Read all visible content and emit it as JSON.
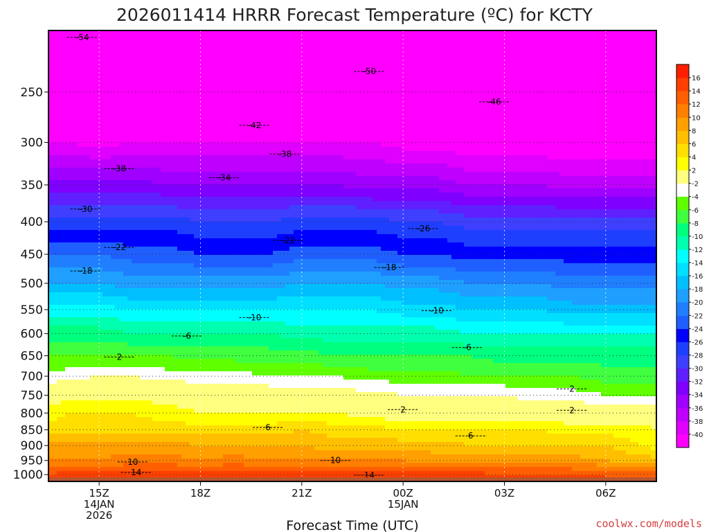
{
  "chart_data": {
    "type": "heatmap",
    "title": "2026011414 HRRR Forecast Temperature (ºC) for KCTY",
    "xlabel": "Forecast Time (UTC)",
    "ylabel": "",
    "credit": "coolwx.com/models",
    "x_range_hours": [
      -0.5,
      17.5
    ],
    "y_range_hpa": [
      1025,
      200
    ],
    "y_ticks": [
      {
        "p": 250,
        "label": "250"
      },
      {
        "p": 300,
        "label": "300"
      },
      {
        "p": 350,
        "label": "350"
      },
      {
        "p": 400,
        "label": "400"
      },
      {
        "p": 450,
        "label": "450"
      },
      {
        "p": 500,
        "label": "500"
      },
      {
        "p": 550,
        "label": "550"
      },
      {
        "p": 600,
        "label": "600"
      },
      {
        "p": 650,
        "label": "650"
      },
      {
        "p": 700,
        "label": "700"
      },
      {
        "p": 750,
        "label": "750"
      },
      {
        "p": 800,
        "label": "800"
      },
      {
        "p": 850,
        "label": "850"
      },
      {
        "p": 900,
        "label": "900"
      },
      {
        "p": 950,
        "label": "950"
      },
      {
        "p": 1000,
        "label": "1000"
      }
    ],
    "x_ticks": [
      {
        "h": 1,
        "lines": [
          "15Z",
          "14JAN",
          "2026"
        ]
      },
      {
        "h": 4,
        "lines": [
          "18Z"
        ]
      },
      {
        "h": 7,
        "lines": [
          "21Z"
        ]
      },
      {
        "h": 10,
        "lines": [
          "00Z",
          "15JAN"
        ]
      },
      {
        "h": 13,
        "lines": [
          "03Z"
        ]
      },
      {
        "h": 16,
        "lines": [
          "06Z"
        ]
      }
    ],
    "colorbar": {
      "levels": [
        -40,
        -38,
        -36,
        -34,
        -32,
        -30,
        -28,
        -26,
        -24,
        -22,
        -20,
        -18,
        -16,
        -14,
        -12,
        -10,
        -8,
        -6,
        -4,
        -2,
        2,
        4,
        6,
        8,
        10,
        12,
        14,
        16
      ],
      "labels": [
        "-40",
        "-38",
        "-36",
        "-34",
        "-32",
        "-30",
        "-28",
        "-26",
        "-24",
        "-22",
        "-20",
        "-18",
        "-16",
        "-14",
        "-12",
        "-10",
        "-8",
        "-6",
        "-4",
        "-2",
        "2",
        "4",
        "6",
        "8",
        "10",
        "12",
        "14",
        "16"
      ],
      "colors": [
        "#ff00ff",
        "#df00ff",
        "#bf00ff",
        "#9f00ff",
        "#7f00ff",
        "#5f1fff",
        "#3f3fff",
        "#1f3fff",
        "#0000ff",
        "#1f5fff",
        "#1f7fff",
        "#1f9fff",
        "#00bfff",
        "#00dfff",
        "#00ffff",
        "#00ffaf",
        "#00ff7f",
        "#3fff3f",
        "#5fff00",
        "#ffffff",
        "#ffff7f",
        "#ffff00",
        "#ffdf00",
        "#ffbf00",
        "#ff9f00",
        "#ff7f00",
        "#ff5f00",
        "#ff3f00",
        "#ff1f00"
      ]
    },
    "times_h": [
      -0.5,
      0,
      1,
      2,
      3,
      4,
      5,
      6,
      7,
      8,
      9,
      10,
      11,
      12,
      13,
      14,
      15,
      16,
      17,
      17.5
    ],
    "pressure_levels_hpa": [
      1000,
      950,
      900,
      850,
      800,
      750,
      700,
      650,
      600,
      550,
      500,
      450,
      400,
      350,
      300,
      250
    ],
    "temperature_c": [
      [
        14,
        15,
        15,
        15,
        15,
        15,
        15,
        15,
        15,
        15,
        15,
        15,
        15,
        15,
        14,
        14,
        14,
        14,
        13,
        13
      ],
      [
        10,
        10,
        10,
        11,
        11,
        10,
        11,
        10,
        10,
        10,
        10,
        10,
        9,
        9,
        9,
        9,
        9,
        8,
        7,
        7
      ],
      [
        9,
        9,
        9,
        9,
        9,
        8,
        8,
        8,
        8,
        7,
        7,
        7,
        7,
        6,
        6,
        6,
        6,
        6,
        4,
        3
      ],
      [
        5,
        5,
        5,
        5,
        5,
        5,
        5,
        5,
        6,
        5,
        5,
        4,
        4,
        4,
        4,
        4,
        3,
        3,
        3,
        2
      ],
      [
        3,
        4,
        4,
        4,
        3,
        2,
        2,
        2,
        2,
        2,
        1,
        0,
        0,
        0,
        0,
        0,
        0,
        0,
        0,
        0
      ],
      [
        0,
        1,
        1,
        1,
        1,
        0,
        0,
        0,
        -1,
        -1,
        -1,
        -2,
        -2,
        -2,
        -2,
        -3,
        -3,
        -4,
        -4,
        -4
      ],
      [
        -3,
        -3,
        -2,
        -2,
        -3,
        -3,
        -3,
        -4,
        -4,
        -4,
        -5,
        -5,
        -5,
        -6,
        -6,
        -6,
        -6,
        -7,
        -7,
        -7
      ],
      [
        -6,
        -6,
        -6,
        -6,
        -6,
        -7,
        -7,
        -7,
        -7,
        -8,
        -8,
        -8,
        -8,
        -8,
        -9,
        -9,
        -9,
        -9,
        -9,
        -9
      ],
      [
        -9,
        -9,
        -9,
        -10,
        -10,
        -10,
        -10,
        -10,
        -11,
        -11,
        -11,
        -11,
        -11,
        -12,
        -12,
        -12,
        -12,
        -12,
        -12,
        -12
      ],
      [
        -13,
        -13,
        -13,
        -14,
        -14,
        -14,
        -14,
        -14,
        -14,
        -14,
        -14,
        -15,
        -15,
        -16,
        -16,
        -16,
        -17,
        -17,
        -17,
        -17
      ],
      [
        -18,
        -18,
        -18,
        -19,
        -19,
        -19,
        -19,
        -19,
        -18,
        -18,
        -18,
        -19,
        -19,
        -20,
        -20,
        -20,
        -21,
        -21,
        -21,
        -21
      ],
      [
        -22,
        -22,
        -22,
        -23,
        -23,
        -24,
        -24,
        -24,
        -23,
        -23,
        -23,
        -24,
        -24,
        -25,
        -25,
        -25,
        -25,
        -25,
        -25,
        -25
      ],
      [
        -27,
        -27,
        -27,
        -27,
        -27,
        -28,
        -28,
        -28,
        -27,
        -27,
        -27,
        -28,
        -28,
        -29,
        -29,
        -29,
        -29,
        -29,
        -29,
        -29
      ],
      [
        -33,
        -33,
        -33,
        -33,
        -34,
        -34,
        -34,
        -34,
        -34,
        -34,
        -35,
        -35,
        -35,
        -36,
        -36,
        -36,
        -37,
        -37,
        -37,
        -37
      ],
      [
        -40,
        -40,
        -41,
        -40,
        -40,
        -40,
        -40,
        -40,
        -40,
        -40,
        -40,
        -41,
        -41,
        -42,
        -42,
        -42,
        -42,
        -42,
        -42,
        -42
      ],
      [
        -46,
        -46,
        -46,
        -47,
        -47,
        -47,
        -47,
        -47,
        -47,
        -47,
        -47,
        -47,
        -47,
        -47,
        -47,
        -47,
        -47,
        -47,
        -47,
        -47
      ]
    ],
    "contour_labels": [
      {
        "text": "-54",
        "h": 0.5,
        "p": 205
      },
      {
        "text": "-50",
        "h": 9.0,
        "p": 232
      },
      {
        "text": "-46",
        "h": 12.7,
        "p": 259
      },
      {
        "text": "-42",
        "h": 5.6,
        "p": 282
      },
      {
        "text": "-38",
        "h": 1.6,
        "p": 330
      },
      {
        "text": "-38",
        "h": 6.5,
        "p": 313
      },
      {
        "text": "-34",
        "h": 4.7,
        "p": 341
      },
      {
        "text": "-30",
        "h": 0.6,
        "p": 382
      },
      {
        "text": "-26",
        "h": 10.6,
        "p": 410
      },
      {
        "text": "-22",
        "h": 1.6,
        "p": 439
      },
      {
        "text": "-22",
        "h": 6.6,
        "p": 428
      },
      {
        "text": "-18",
        "h": 0.6,
        "p": 478
      },
      {
        "text": "-18",
        "h": 9.6,
        "p": 472
      },
      {
        "text": "-10",
        "h": 5.6,
        "p": 566
      },
      {
        "text": "-10",
        "h": 11.0,
        "p": 552
      },
      {
        "text": "-6",
        "h": 3.6,
        "p": 605
      },
      {
        "text": "-6",
        "h": 11.9,
        "p": 631
      },
      {
        "text": "2",
        "h": 1.6,
        "p": 653
      },
      {
        "text": "2",
        "h": 15.0,
        "p": 733
      },
      {
        "text": "2",
        "h": 10.0,
        "p": 790
      },
      {
        "text": "2",
        "h": 15.0,
        "p": 792
      },
      {
        "text": "6",
        "h": 6.0,
        "p": 843
      },
      {
        "text": "6",
        "h": 12.0,
        "p": 869
      },
      {
        "text": "10",
        "h": 2.0,
        "p": 955
      },
      {
        "text": "10",
        "h": 8.0,
        "p": 950
      },
      {
        "text": "14",
        "h": 2.1,
        "p": 992
      },
      {
        "text": "14",
        "h": 9.0,
        "p": 1002
      }
    ]
  }
}
